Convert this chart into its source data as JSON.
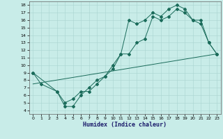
{
  "xlabel": "Humidex (Indice chaleur)",
  "bg_color": "#c8ece8",
  "grid_color": "#a8d4d0",
  "line_color": "#1a6b5a",
  "xlim": [
    -0.5,
    23.5
  ],
  "ylim": [
    3.5,
    18.5
  ],
  "xticks": [
    0,
    1,
    2,
    3,
    4,
    5,
    6,
    7,
    8,
    9,
    10,
    11,
    12,
    13,
    14,
    15,
    16,
    17,
    18,
    19,
    20,
    21,
    22,
    23
  ],
  "yticks": [
    4,
    5,
    6,
    7,
    8,
    9,
    10,
    11,
    12,
    13,
    14,
    15,
    16,
    17,
    18
  ],
  "line1_x": [
    0,
    1,
    3,
    4,
    5,
    6,
    7,
    8,
    9,
    10,
    11,
    12,
    13,
    14,
    15,
    16,
    17,
    18,
    19,
    20,
    21,
    22,
    23
  ],
  "line1_y": [
    9,
    7.5,
    6.5,
    5.0,
    5.5,
    6.5,
    6.5,
    7.5,
    8.5,
    10.0,
    11.5,
    16.0,
    15.5,
    16.0,
    17.0,
    16.5,
    17.5,
    18.0,
    17.5,
    16.0,
    15.5,
    13.0,
    11.5
  ],
  "line2_x": [
    0,
    3,
    4,
    5,
    6,
    7,
    8,
    9,
    10,
    11,
    12,
    13,
    14,
    15,
    16,
    17,
    18,
    19,
    20,
    21,
    22,
    23
  ],
  "line2_y": [
    9,
    6.5,
    4.5,
    4.5,
    6.0,
    7.0,
    8.0,
    8.5,
    9.5,
    11.5,
    11.5,
    13.0,
    13.5,
    16.5,
    16.0,
    16.5,
    17.5,
    17.0,
    16.0,
    16.0,
    13.0,
    11.5
  ],
  "line3_x": [
    0,
    23
  ],
  "line3_y": [
    7.5,
    11.5
  ]
}
